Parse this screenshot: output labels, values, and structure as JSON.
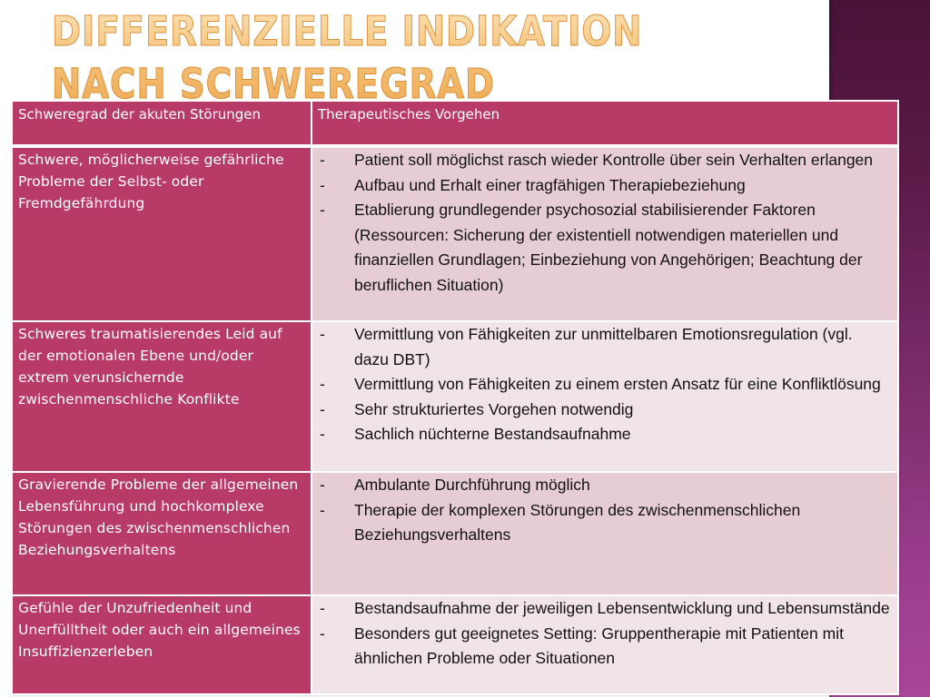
{
  "slide": {
    "title": "Differenzielle Indikation nach Schweregrad",
    "colors": {
      "title_gradient_top": "#fbe3b6",
      "title_gradient_bottom": "#eeab55",
      "header_bg": "#b73a67",
      "left_cell_bg": "#b73a67",
      "row_shade_a": "#e6cdd4",
      "row_shade_b": "#f1e4e9",
      "side_band_top": "#4a1238",
      "side_band_bottom": "#a8469a"
    }
  },
  "table": {
    "headers": {
      "col1": "Schweregrad der akuten Störungen",
      "col2": "Therapeutisches Vorgehen"
    },
    "bullet_marker": "-",
    "rows": [
      {
        "severity": "Schwere, möglicherweise gefährliche Probleme der Selbst- oder Fremdgefährdung",
        "measures": [
          "Patient soll möglichst rasch wieder Kontrolle über sein Verhalten erlangen",
          "Aufbau und Erhalt einer tragfähigen Therapiebeziehung",
          "Etablierung grundlegender psychosozial stabilisierender Faktoren (Ressourcen: Sicherung der existentiell notwendigen materiellen und finanziellen Grundlagen; Einbeziehung von Angehörigen; Beachtung der beruflichen Situation)"
        ]
      },
      {
        "severity": "Schweres traumatisierendes Leid auf der emotionalen Ebene und/oder extrem verunsichernde zwischenmenschliche Konflikte",
        "measures": [
          "Vermittlung von Fähigkeiten zur unmittelbaren Emotionsregulation (vgl. dazu DBT)",
          "Vermittlung von Fähigkeiten zu einem ersten Ansatz für eine Konfliktlösung",
          "Sehr strukturiertes Vorgehen notwendig",
          "Sachlich nüchterne Bestandsaufnahme"
        ]
      },
      {
        "severity": "Gravierende Probleme der allgemeinen Lebensführung und hochkomplexe Störungen des zwischenmenschlichen Beziehungsverhaltens",
        "measures": [
          "Ambulante Durchführung möglich",
          "Therapie der komplexen Störungen des zwischenmenschlichen Beziehungsverhaltens"
        ]
      },
      {
        "severity": "Gefühle der Unzufriedenheit und Unerfülltheit oder auch ein allgemeines Insuffizienzerleben",
        "measures": [
          "Bestandsaufnahme der jeweiligen Lebensentwicklung und Lebensumstände",
          "Besonders gut geeignetes Setting: Gruppentherapie mit Patienten mit ähnlichen Probleme oder Situationen"
        ]
      }
    ]
  }
}
